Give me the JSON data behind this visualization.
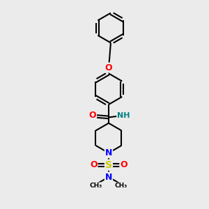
{
  "bg_color": "#ebebeb",
  "bond_color": "#000000",
  "bond_width": 1.5,
  "atom_colors": {
    "N": "#0000ff",
    "O": "#ff0000",
    "S": "#cccc00",
    "NH": "#008080"
  },
  "font_size": 8,
  "fig_size": [
    3.0,
    3.0
  ],
  "dpi": 100
}
